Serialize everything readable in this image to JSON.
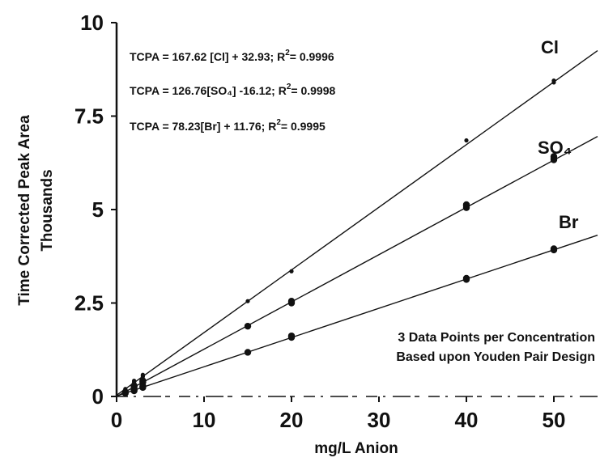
{
  "chart_data": {
    "type": "scatter",
    "xlabel": "mg/L Anion",
    "ylabel": "Time Corrected Peak Area",
    "ylabel2": "Thousands",
    "xlim": [
      0,
      55
    ],
    "ylim": [
      0,
      10
    ],
    "x_ticks": [
      0,
      10,
      20,
      30,
      40,
      50
    ],
    "y_ticks": [
      0,
      2.5,
      5,
      7.5,
      10
    ],
    "y_tick_labels": [
      "0",
      "2.5",
      "5",
      "7.5",
      "10"
    ],
    "grid": false,
    "equations": [
      {
        "prefix": "TCPA = 167.62 [Cl] + 32.93; R",
        "sup": "2",
        "suffix": "= 0.9996"
      },
      {
        "prefix": "TCPA = 126.76[SO₄] -16.12; R",
        "sup": "2",
        "suffix": "= 0.9998"
      },
      {
        "prefix": "TCPA =    78.23[Br] + 11.76; R",
        "sup": "2",
        "suffix": "= 0.9995"
      }
    ],
    "annotation_lines": [
      "3 Data Points per Concentration",
      "Based upon Youden Pair Design"
    ],
    "series": [
      {
        "name": "Cl",
        "slope_thousands": 0.16762,
        "intercept_thousands": 0.03293,
        "x": [
          1,
          2,
          2,
          2,
          3,
          3,
          3,
          15,
          20,
          40,
          50,
          50
        ],
        "y": [
          0.2,
          0.37,
          0.4,
          0.42,
          0.53,
          0.56,
          0.58,
          2.55,
          3.35,
          6.85,
          8.4,
          8.45
        ]
      },
      {
        "name": "SO₄",
        "slope_thousands": 0.12676,
        "intercept_thousands": -0.01612,
        "x": [
          1,
          2,
          2,
          2,
          3,
          3,
          3,
          15,
          20,
          20,
          40,
          40,
          40,
          50,
          50,
          50
        ],
        "y": [
          0.12,
          0.25,
          0.27,
          0.29,
          0.38,
          0.4,
          0.42,
          1.88,
          2.5,
          2.55,
          5.05,
          5.1,
          5.13,
          6.33,
          6.38,
          6.42
        ]
      },
      {
        "name": "Br",
        "slope_thousands": 0.07823,
        "intercept_thousands": 0.01176,
        "x": [
          1,
          2,
          2,
          2,
          3,
          3,
          3,
          15,
          20,
          20,
          40,
          40,
          50,
          50
        ],
        "y": [
          0.09,
          0.15,
          0.17,
          0.19,
          0.24,
          0.26,
          0.28,
          1.18,
          1.58,
          1.62,
          3.13,
          3.16,
          3.92,
          3.95
        ]
      }
    ]
  }
}
